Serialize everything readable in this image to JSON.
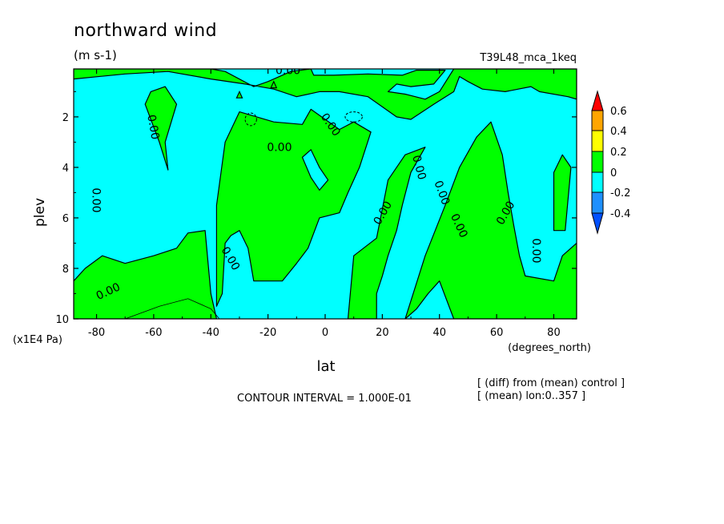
{
  "chart_data": {
    "type": "heatmap",
    "title": "northward wind",
    "units": "(m s-1)",
    "experiment": "T39L48_mca_1keq",
    "xlabel": "lat",
    "x_units": "(degrees_north)",
    "ylabel": "plev",
    "y_units": "(x1E4 Pa)",
    "xlim": [
      -88,
      88
    ],
    "ylim": [
      10,
      0.1
    ],
    "x_ticks": [
      -80,
      -60,
      -40,
      -20,
      0,
      20,
      40,
      60,
      80
    ],
    "x_tick_labels": [
      "-80",
      "-60",
      "-40",
      "-20",
      "0",
      "20",
      "40",
      "60",
      "80"
    ],
    "y_ticks": [
      2,
      4,
      6,
      8,
      10
    ],
    "y_tick_labels": [
      "2",
      "4",
      "6",
      "8",
      "10"
    ],
    "contour_label": "0.00",
    "contour_interval_text": "CONTOUR INTERVAL = 1.000E-01",
    "notes": [
      "[ (diff) from (mean) control ]",
      "[ (mean) lon:0..357 ]"
    ],
    "colorbar": {
      "levels": [
        -0.4,
        -0.2,
        0,
        0.2,
        0.4,
        0.6
      ],
      "labels": [
        "-0.4",
        "-0.2",
        "0",
        "0.2",
        "0.4",
        "0.6"
      ],
      "colors": [
        "#1e90ff",
        "#00ffff",
        "#00ff00",
        "#ffff00",
        "#ffa500",
        "#ff0000"
      ],
      "under_color": "#0050ff",
      "over_color": "#ff0000"
    },
    "colors": {
      "negative": "#00ffff",
      "positive": "#00ff00"
    },
    "positive_regions": [
      {
        "id": "top-band",
        "points": [
          [
            -88,
            0.1
          ],
          [
            -40,
            0.1
          ],
          [
            -35,
            0.2
          ],
          [
            -25,
            0.8
          ],
          [
            -20,
            0.6
          ],
          [
            -12,
            0.2
          ],
          [
            -5,
            0.1
          ],
          [
            -4,
            0.35
          ],
          [
            3,
            0.35
          ],
          [
            15,
            0.3
          ],
          [
            27,
            0.35
          ],
          [
            32,
            0.15
          ],
          [
            42,
            0.15
          ],
          [
            38,
            0.7
          ],
          [
            30,
            0.8
          ],
          [
            25,
            0.7
          ],
          [
            22,
            1.0
          ],
          [
            28,
            1.1
          ],
          [
            35,
            1.3
          ],
          [
            40,
            1.0
          ],
          [
            45,
            0.1
          ],
          [
            88,
            0.1
          ],
          [
            88,
            1.3
          ],
          [
            85,
            1.2
          ],
          [
            75,
            1.0
          ],
          [
            72,
            0.8
          ],
          [
            63,
            1.0
          ],
          [
            55,
            0.9
          ],
          [
            50,
            0.6
          ],
          [
            47,
            0.4
          ],
          [
            45,
            1.0
          ],
          [
            38,
            1.5
          ],
          [
            30,
            2.1
          ],
          [
            25,
            2.0
          ],
          [
            15,
            1.2
          ],
          [
            5,
            1.0
          ],
          [
            -2,
            1.0
          ],
          [
            -10,
            1.2
          ],
          [
            -18,
            0.9
          ],
          [
            -28,
            0.7
          ],
          [
            -40,
            0.5
          ],
          [
            -55,
            0.2
          ],
          [
            -70,
            0.3
          ],
          [
            -88,
            0.5
          ]
        ]
      },
      {
        "id": "main-blob",
        "points": [
          [
            -38,
            5.5
          ],
          [
            -35,
            3.0
          ],
          [
            -30,
            1.8
          ],
          [
            -18,
            2.2
          ],
          [
            -8,
            2.3
          ],
          [
            -5,
            1.7
          ],
          [
            5,
            2.5
          ],
          [
            10,
            2.2
          ],
          [
            16,
            2.6
          ],
          [
            12,
            4.0
          ],
          [
            8,
            5.0
          ],
          [
            5,
            5.8
          ],
          [
            -2,
            6.0
          ],
          [
            -6,
            7.2
          ],
          [
            -10,
            7.8
          ],
          [
            -15,
            8.5
          ],
          [
            -20,
            8.5
          ],
          [
            -25,
            8.5
          ],
          [
            -27,
            7.2
          ],
          [
            -30,
            6.5
          ],
          [
            -33,
            6.7
          ],
          [
            -35,
            7.0
          ],
          [
            -36,
            9.0
          ],
          [
            -38,
            9.5
          ]
        ]
      },
      {
        "id": "sw-strip",
        "points": [
          [
            -88,
            8.5
          ],
          [
            -84,
            8.0
          ],
          [
            -78,
            7.5
          ],
          [
            -70,
            7.8
          ],
          [
            -60,
            7.5
          ],
          [
            -52,
            7.2
          ],
          [
            -48,
            6.6
          ],
          [
            -42,
            6.5
          ],
          [
            -40,
            9.0
          ],
          [
            -38,
            10.0
          ],
          [
            -88,
            10.0
          ]
        ]
      },
      {
        "id": "center-strip",
        "points": [
          [
            8,
            10.0
          ],
          [
            10,
            7.5
          ],
          [
            18,
            6.8
          ],
          [
            22,
            4.5
          ],
          [
            28,
            3.5
          ],
          [
            35,
            3.2
          ],
          [
            30,
            4.2
          ],
          [
            27,
            5.5
          ],
          [
            25,
            6.5
          ],
          [
            22,
            7.5
          ],
          [
            20,
            8.3
          ],
          [
            18,
            9.0
          ],
          [
            18,
            10.0
          ]
        ]
      },
      {
        "id": "right-strip",
        "points": [
          [
            28,
            10.0
          ],
          [
            35,
            7.5
          ],
          [
            42,
            5.5
          ],
          [
            47,
            4.0
          ],
          [
            53,
            2.8
          ],
          [
            58,
            2.2
          ],
          [
            62,
            3.5
          ],
          [
            64,
            5.0
          ],
          [
            66,
            6.3
          ],
          [
            68,
            7.5
          ],
          [
            70,
            8.3
          ],
          [
            80,
            8.5
          ],
          [
            83,
            7.5
          ],
          [
            88,
            7.0
          ],
          [
            88,
            10.0
          ],
          [
            45,
            10.0
          ],
          [
            40,
            8.5
          ],
          [
            36,
            9.0
          ],
          [
            32,
            9.6
          ]
        ]
      },
      {
        "id": "nh-polar",
        "points": [
          [
            80,
            4.2
          ],
          [
            83,
            3.5
          ],
          [
            86,
            4.0
          ],
          [
            84,
            6.5
          ],
          [
            80,
            6.5
          ]
        ]
      },
      {
        "id": "sh-strip",
        "points": [
          [
            -61,
            1.0
          ],
          [
            -56,
            0.8
          ],
          [
            -52,
            1.5
          ],
          [
            -56,
            3.0
          ],
          [
            -55,
            4.1
          ],
          [
            -58,
            3.0
          ],
          [
            -63,
            1.5
          ]
        ]
      }
    ],
    "negative_holes": [
      {
        "id": "hole-1",
        "points": [
          [
            -8,
            3.6
          ],
          [
            -5,
            3.3
          ],
          [
            -2,
            4.0
          ],
          [
            1,
            4.5
          ],
          [
            -2,
            4.9
          ],
          [
            -5,
            4.4
          ]
        ]
      }
    ],
    "small_positive_triangles": [
      {
        "id": "tri-1",
        "points": [
          [
            -31,
            1.25
          ],
          [
            -30,
            1.0
          ],
          [
            -29,
            1.25
          ]
        ]
      },
      {
        "id": "tri-2",
        "points": [
          [
            -19,
            0.85
          ],
          [
            -18,
            0.6
          ],
          [
            -17,
            0.85
          ]
        ]
      }
    ],
    "dashed_negative_ellipses": [
      {
        "id": "d-1",
        "cx": -26,
        "cy": 2.1,
        "rx": 2.0,
        "ry": 0.25
      },
      {
        "id": "d-2",
        "cx": 10,
        "cy": 2.0,
        "rx": 3.0,
        "ry": 0.2
      }
    ],
    "thin_contour": {
      "id": "sw-thin",
      "points": [
        [
          -70,
          10.0
        ],
        [
          -58,
          9.5
        ],
        [
          -48,
          9.2
        ],
        [
          -40,
          9.6
        ],
        [
          -37,
          10.0
        ]
      ]
    },
    "zero_labels": [
      {
        "x": -16,
        "y": 3.2,
        "rot": 0
      },
      {
        "x": -60,
        "y": 2.4,
        "rot": 80
      },
      {
        "x": -80,
        "y": 5.3,
        "rot": 90
      },
      {
        "x": -76,
        "y": 8.9,
        "rot": -25
      },
      {
        "x": -33,
        "y": 7.6,
        "rot": 60
      },
      {
        "x": -13,
        "y": 0.15,
        "rot": 0
      },
      {
        "x": 2,
        "y": 2.3,
        "rot": 55
      },
      {
        "x": 20,
        "y": 5.8,
        "rot": -60
      },
      {
        "x": 33,
        "y": 4.0,
        "rot": 75
      },
      {
        "x": 41,
        "y": 5.0,
        "rot": 70
      },
      {
        "x": 47,
        "y": 6.3,
        "rot": 65
      },
      {
        "x": 63,
        "y": 5.8,
        "rot": -60
      },
      {
        "x": 74,
        "y": 7.3,
        "rot": 90
      }
    ]
  }
}
